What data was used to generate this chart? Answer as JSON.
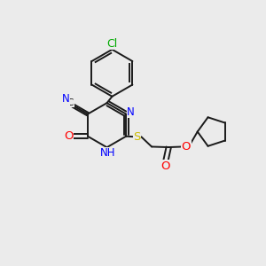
{
  "bg_color": "#ebebeb",
  "bond_color": "#1a1a1a",
  "bond_width": 1.4,
  "atom_colors": {
    "N": "#0000ff",
    "O": "#ff0000",
    "S": "#ccbb00",
    "Cl": "#00aa00"
  },
  "font_size": 8.5,
  "figsize": [
    3.0,
    3.0
  ],
  "dpi": 100
}
